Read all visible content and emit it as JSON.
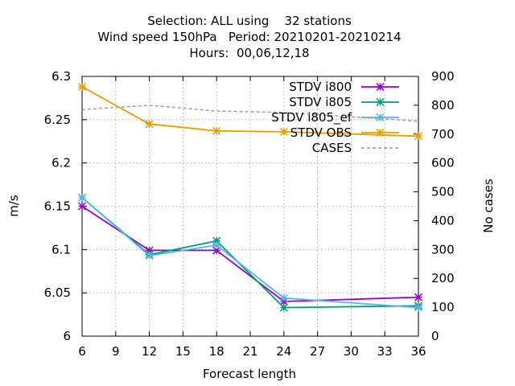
{
  "chart_data": {
    "type": "line",
    "title_lines": [
      "Selection: ALL using    32 stations",
      "Wind speed 150hPa   Period: 20210201-20210214",
      "Hours:  00,06,12,18"
    ],
    "xlabel": "Forecast length",
    "ylabel": "m/s",
    "y2label": "No cases",
    "xlim": [
      6,
      36
    ],
    "ylim": [
      6.0,
      6.3
    ],
    "y2lim": [
      0,
      900
    ],
    "xticks": [
      "6",
      "9",
      "12",
      "15",
      "18",
      "21",
      "24",
      "27",
      "30",
      "33",
      "36"
    ],
    "yticks": [
      "6",
      "6.05",
      "6.1",
      "6.15",
      "6.2",
      "6.25",
      "6.3"
    ],
    "y2ticks": [
      "0",
      "100",
      "200",
      "300",
      "400",
      "500",
      "600",
      "700",
      "800",
      "900"
    ],
    "grid": true,
    "legend_position": "top-right",
    "x": [
      6,
      12,
      18,
      24,
      36
    ],
    "series": [
      {
        "name": "STDV i800",
        "color": "#9400d3",
        "axis": "y",
        "marker": "star",
        "values": [
          6.15,
          6.099,
          6.099,
          6.04,
          6.045
        ]
      },
      {
        "name": "STDV i805",
        "color": "#009e73",
        "axis": "y",
        "marker": "star",
        "values": [
          6.16,
          6.094,
          6.11,
          6.033,
          6.035
        ]
      },
      {
        "name": "STDV i805_ef",
        "color": "#56b4e9",
        "axis": "y",
        "marker": "star",
        "values": [
          6.16,
          6.093,
          6.105,
          6.044,
          6.033
        ]
      },
      {
        "name": "STDV OBS",
        "color": "#e69f00",
        "axis": "y",
        "marker": "star",
        "values": [
          6.288,
          6.245,
          6.237,
          6.236,
          6.231
        ]
      },
      {
        "name": "CASES",
        "color": "#999999",
        "axis": "y2",
        "marker": "none",
        "dashed": true,
        "values": [
          785,
          800,
          780,
          775,
          745
        ]
      }
    ]
  }
}
